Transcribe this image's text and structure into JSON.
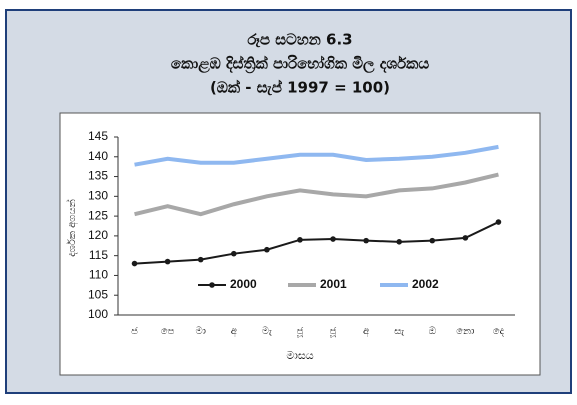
{
  "chart_data": {
    "type": "line",
    "title": "රූප සටහන 6.3",
    "subtitle": "කොළඹ දිස්ත්‍රික් පාරිභෝගික මිල දර්ශකය",
    "subtitle2": "(ඔක් - සැප් 1997 = 100)",
    "x_label": "මාසය",
    "y_label": "දර්ශක අගයන්",
    "categories": [
      "ජ",
      "පෙ",
      "මා",
      "අ",
      "මැ",
      "ජූ",
      "ජූ",
      "අ",
      "සැ",
      "ඔ",
      "නො",
      "දෙ"
    ],
    "series": [
      {
        "name": "2000",
        "color": "#1a1a1a",
        "markers": true,
        "values": [
          113,
          113.5,
          114,
          115.5,
          116.5,
          119,
          119.2,
          118.8,
          118.5,
          118.8,
          119.5,
          123.5
        ]
      },
      {
        "name": "2001",
        "color": "#a8a8a8",
        "markers": false,
        "values": [
          125.5,
          127.5,
          125.5,
          128,
          130,
          131.5,
          130.5,
          130,
          131.5,
          132,
          133.5,
          135.5
        ]
      },
      {
        "name": "2002",
        "color": "#8fb8f0",
        "markers": false,
        "values": [
          138,
          139.5,
          138.5,
          138.5,
          139.5,
          140.5,
          140.5,
          139.2,
          139.5,
          140,
          141,
          142.5
        ]
      }
    ],
    "ylim": [
      100,
      145
    ],
    "yticks": [
      100,
      105,
      110,
      115,
      120,
      125,
      130,
      135,
      140,
      145
    ],
    "grid": false
  }
}
